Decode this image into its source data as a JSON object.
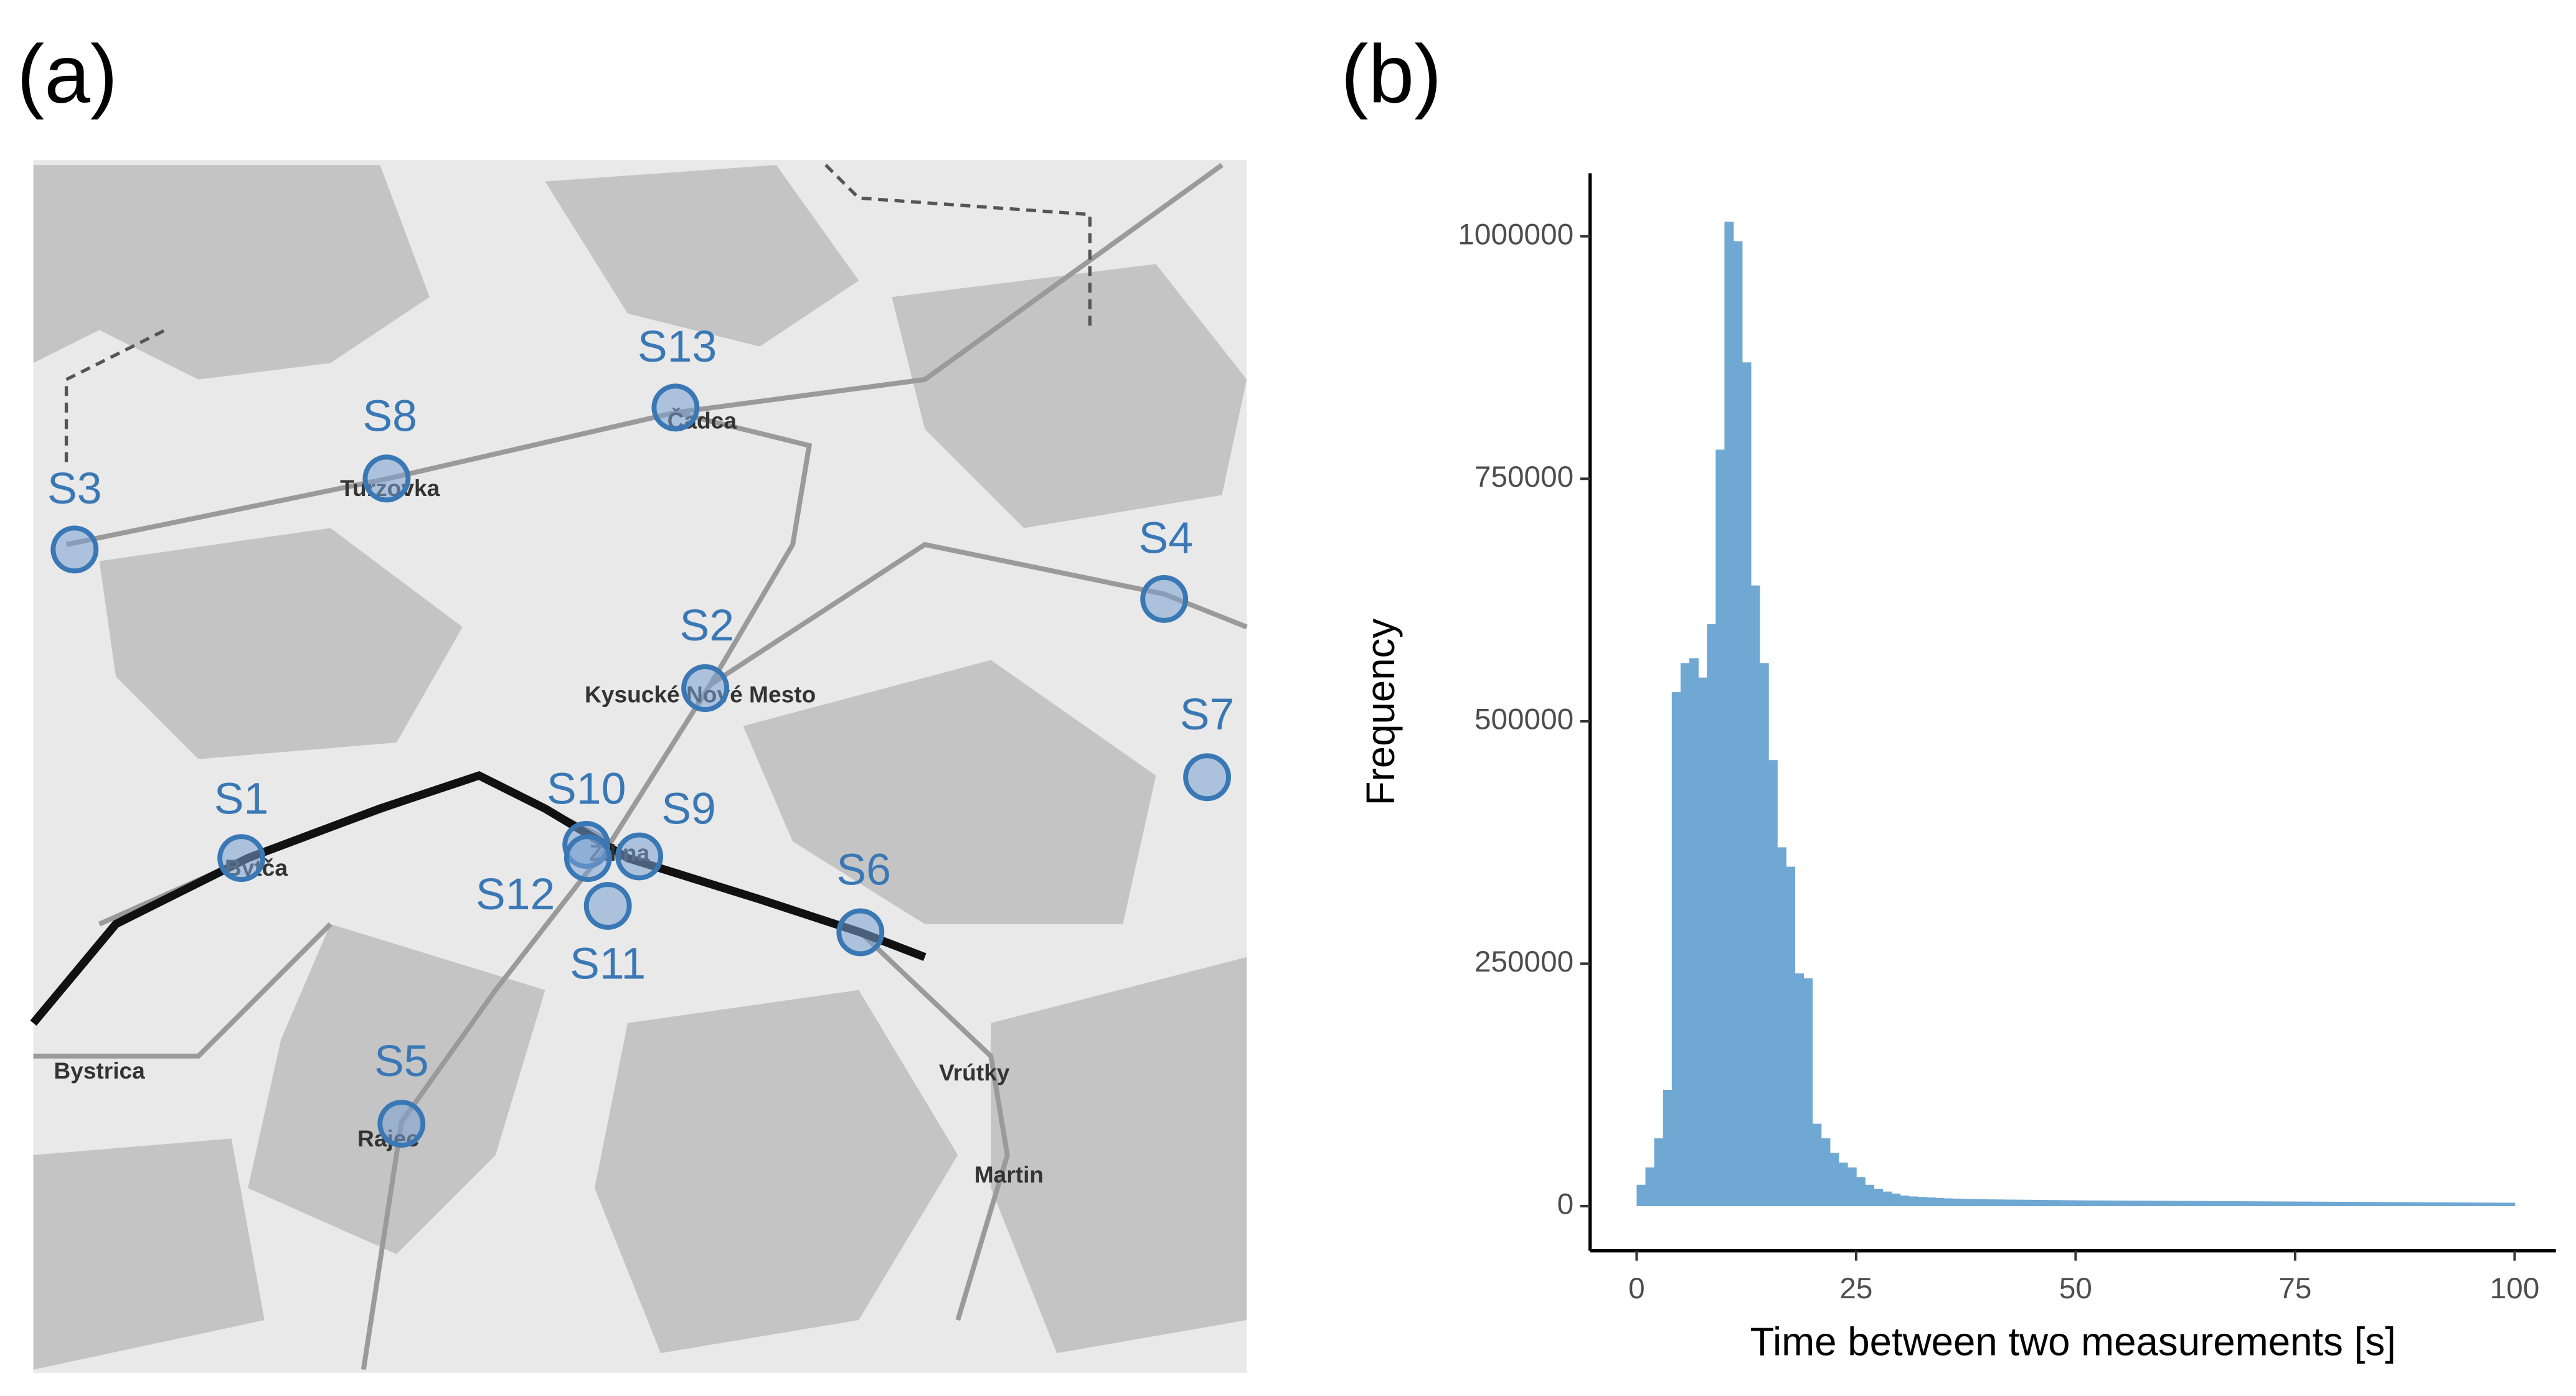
{
  "map": {
    "panel_label": "(a)",
    "stations": [
      "S13",
      "S8",
      "S3",
      "S4",
      "S2",
      "S7",
      "S1",
      "S10",
      "S9",
      "S12",
      "S11",
      "S6",
      "S5"
    ],
    "places": [
      "Turzovka",
      "Čadca",
      "Kysucké Nové Mesto",
      "Bytča",
      "Žilina",
      "Bystrica",
      "Vrútky",
      "Rajec",
      "Martin"
    ]
  },
  "chart_data": {
    "type": "histogram",
    "panel_label": "(b)",
    "x_label": "Time between two measurements [s]",
    "y_label": "Frequency",
    "color": "#6fa8d3",
    "bins": [
      0,
      1,
      2,
      3,
      4,
      5,
      6,
      7,
      8,
      9,
      10,
      11,
      12,
      13,
      14,
      15,
      16,
      17,
      18,
      19,
      20,
      21,
      22,
      23,
      24,
      25,
      26,
      27,
      28,
      29,
      30,
      31,
      32,
      33,
      34,
      35,
      36,
      37,
      38,
      39,
      40,
      41,
      42,
      43,
      44,
      45,
      46,
      47,
      48,
      49,
      50,
      51,
      52,
      53,
      54,
      55,
      56,
      57,
      58,
      59,
      60,
      61,
      62,
      63,
      64,
      65,
      66,
      67,
      68,
      69,
      70,
      71,
      72,
      73,
      74,
      75,
      76,
      77,
      78,
      79,
      80,
      81,
      82,
      83,
      84,
      85,
      86,
      87,
      88,
      89,
      90,
      91,
      92,
      93,
      94,
      95,
      96,
      97,
      98,
      99,
      100
    ],
    "values": [
      22000,
      40000,
      70000,
      120000,
      530000,
      560000,
      565000,
      545000,
      600000,
      780000,
      1015000,
      995000,
      870000,
      640000,
      560000,
      460000,
      370000,
      350000,
      240000,
      235000,
      85000,
      70000,
      55000,
      45000,
      40000,
      30000,
      22000,
      18000,
      15000,
      13000,
      11000,
      10000,
      9500,
      9000,
      8500,
      8000,
      7800,
      7600,
      7400,
      7200,
      7000,
      6900,
      6800,
      6700,
      6600,
      6500,
      6400,
      6300,
      6200,
      6100,
      6000,
      5950,
      5900,
      5850,
      5800,
      5750,
      5700,
      5650,
      5600,
      5550,
      5500,
      5450,
      5400,
      5350,
      5300,
      5250,
      5200,
      5150,
      5100,
      5050,
      5000,
      4950,
      4900,
      4850,
      4800,
      4750,
      4700,
      4650,
      4600,
      4550,
      4500,
      4450,
      4400,
      4350,
      4300,
      4250,
      4200,
      4150,
      4100,
      4050,
      4000,
      3950,
      3900,
      3850,
      3800,
      3750,
      3700,
      3650,
      3600,
      3550
    ],
    "xlim": [
      -5.3,
      104.7
    ],
    "xticks": [
      0,
      25,
      50,
      75,
      100
    ],
    "ylim": [
      -46000,
      1065000
    ],
    "yticks": [
      0,
      250000,
      500000,
      750000,
      1000000
    ]
  }
}
